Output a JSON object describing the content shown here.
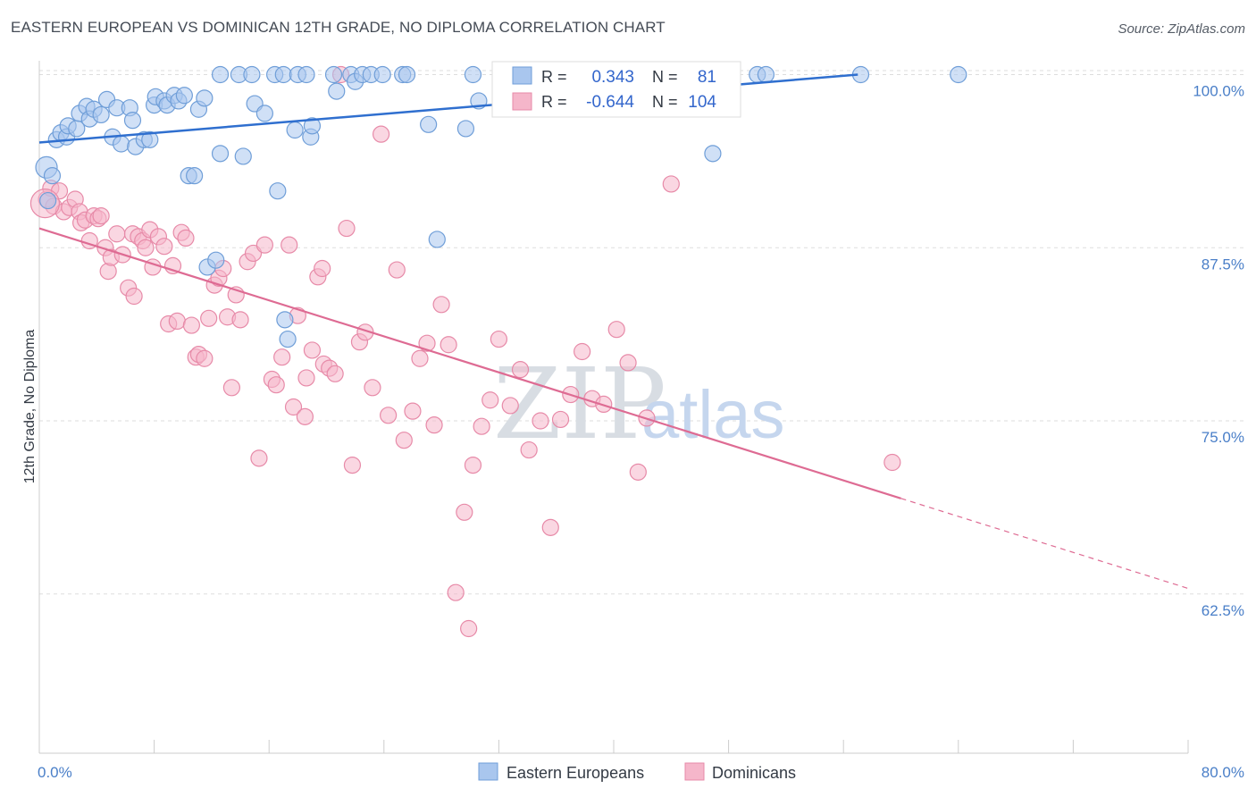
{
  "title": "EASTERN EUROPEAN VS DOMINICAN 12TH GRADE, NO DIPLOMA CORRELATION CHART",
  "source": "Source: ZipAtlas.com",
  "watermark": {
    "zip": "ZIP",
    "atlas": "atlas"
  },
  "colors": {
    "blue_fill": "#a9c6ee",
    "blue_stroke": "#6f9ed8",
    "blue_line": "#2f6fcf",
    "pink_fill": "#f5b6ca",
    "pink_stroke": "#e78aa8",
    "pink_line": "#de6b93",
    "tick_label": "#4a7fc8",
    "grid": "#dddddd"
  },
  "legend": {
    "rows": [
      {
        "r_label": "R =",
        "r_value": "0.343",
        "n_label": "N =",
        "n_value": "81"
      },
      {
        "r_label": "R =",
        "r_value": "-0.644",
        "n_label": "N =",
        "n_value": "104"
      }
    ]
  },
  "chart_data": {
    "type": "scatter",
    "title": "EASTERN EUROPEAN VS DOMINICAN 12TH GRADE, NO DIPLOMA CORRELATION CHART",
    "xlabel": "",
    "ylabel": "12th Grade, No Diploma",
    "xlim": [
      0,
      80
    ],
    "ylim": [
      51,
      101
    ],
    "x_tick_labels": [
      "0.0%",
      "80.0%"
    ],
    "y_ticks": [
      62.5,
      75.0,
      87.5,
      100.0
    ],
    "y_tick_labels": [
      "62.5%",
      "75.0%",
      "87.5%",
      "100.0%"
    ],
    "grid": true,
    "legend_position": "top-center",
    "series": [
      {
        "name": "Eastern Europeans",
        "color": "#a9c6ee",
        "trend": {
          "x": [
            0,
            57
          ],
          "y": [
            95.1,
            100.0
          ]
        },
        "points": [
          [
            0.5,
            93.3
          ],
          [
            0.6,
            90.9
          ],
          [
            0.9,
            92.7
          ],
          [
            1.2,
            95.3
          ],
          [
            1.5,
            95.8
          ],
          [
            1.9,
            95.5
          ],
          [
            2.0,
            96.3
          ],
          [
            2.6,
            96.1
          ],
          [
            2.8,
            97.2
          ],
          [
            3.3,
            97.7
          ],
          [
            3.5,
            96.8
          ],
          [
            3.8,
            97.5
          ],
          [
            4.3,
            97.1
          ],
          [
            4.7,
            98.2
          ],
          [
            5.1,
            95.5
          ],
          [
            5.4,
            97.6
          ],
          [
            5.7,
            95.0
          ],
          [
            6.3,
            97.6
          ],
          [
            6.5,
            96.7
          ],
          [
            6.7,
            94.8
          ],
          [
            7.3,
            95.3
          ],
          [
            7.7,
            95.3
          ],
          [
            8.0,
            97.8
          ],
          [
            8.1,
            98.4
          ],
          [
            8.7,
            98.1
          ],
          [
            8.9,
            97.8
          ],
          [
            9.4,
            98.5
          ],
          [
            9.7,
            98.1
          ],
          [
            10.1,
            98.5
          ],
          [
            10.4,
            92.7
          ],
          [
            10.8,
            92.7
          ],
          [
            11.1,
            97.5
          ],
          [
            11.5,
            98.3
          ],
          [
            11.7,
            86.1
          ],
          [
            12.3,
            86.6
          ],
          [
            12.6,
            94.3
          ],
          [
            12.6,
            100
          ],
          [
            13.9,
            100
          ],
          [
            14.2,
            94.1
          ],
          [
            14.8,
            100
          ],
          [
            15.0,
            97.9
          ],
          [
            15.7,
            97.2
          ],
          [
            16.4,
            100
          ],
          [
            16.6,
            91.6
          ],
          [
            17.0,
            100
          ],
          [
            17.1,
            82.3
          ],
          [
            17.3,
            80.9
          ],
          [
            17.8,
            96.0
          ],
          [
            18.0,
            100
          ],
          [
            18.6,
            100
          ],
          [
            18.9,
            95.5
          ],
          [
            19.0,
            96.3
          ],
          [
            20.5,
            100
          ],
          [
            20.7,
            98.8
          ],
          [
            21.7,
            100
          ],
          [
            22.0,
            99.5
          ],
          [
            22.5,
            100
          ],
          [
            23.1,
            100
          ],
          [
            23.9,
            100
          ],
          [
            25.3,
            100
          ],
          [
            25.6,
            100
          ],
          [
            27.1,
            96.4
          ],
          [
            27.7,
            88.1
          ],
          [
            29.7,
            96.1
          ],
          [
            30.2,
            100
          ],
          [
            30.6,
            98.1
          ],
          [
            32.5,
            100
          ],
          [
            35.5,
            100
          ],
          [
            37.1,
            100
          ],
          [
            39.9,
            100
          ],
          [
            41.0,
            100
          ],
          [
            42.7,
            100
          ],
          [
            43.2,
            100
          ],
          [
            44.5,
            99.7
          ],
          [
            45.6,
            100
          ],
          [
            46.4,
            100
          ],
          [
            46.9,
            94.3
          ],
          [
            50.0,
            100
          ],
          [
            50.6,
            100
          ],
          [
            57.2,
            100
          ],
          [
            64.0,
            100
          ]
        ]
      },
      {
        "name": "Dominicans",
        "color": "#f5b6ca",
        "trend": {
          "x": [
            0,
            60
          ],
          "y": [
            88.9,
            69.4
          ]
        },
        "trend_dashed": {
          "x": [
            60,
            80
          ],
          "y": [
            69.4,
            62.9
          ]
        },
        "points": [
          [
            0.5,
            91.0
          ],
          [
            0.8,
            91.8
          ],
          [
            1.0,
            90.5
          ],
          [
            1.4,
            91.6
          ],
          [
            1.7,
            90.1
          ],
          [
            2.1,
            90.4
          ],
          [
            2.5,
            91.0
          ],
          [
            2.8,
            90.1
          ],
          [
            2.9,
            89.3
          ],
          [
            3.2,
            89.5
          ],
          [
            3.5,
            88.0
          ],
          [
            3.8,
            89.8
          ],
          [
            4.1,
            89.6
          ],
          [
            4.3,
            89.8
          ],
          [
            4.6,
            87.5
          ],
          [
            4.8,
            85.8
          ],
          [
            5.0,
            86.8
          ],
          [
            5.4,
            88.5
          ],
          [
            5.8,
            87.0
          ],
          [
            6.2,
            84.6
          ],
          [
            6.5,
            88.5
          ],
          [
            6.6,
            84.0
          ],
          [
            6.9,
            88.3
          ],
          [
            7.2,
            88.0
          ],
          [
            7.4,
            87.5
          ],
          [
            7.7,
            88.8
          ],
          [
            7.9,
            86.1
          ],
          [
            8.3,
            88.3
          ],
          [
            8.7,
            87.6
          ],
          [
            9.0,
            82.0
          ],
          [
            9.3,
            86.2
          ],
          [
            9.6,
            82.2
          ],
          [
            9.9,
            88.6
          ],
          [
            10.2,
            88.2
          ],
          [
            10.6,
            81.9
          ],
          [
            10.9,
            79.6
          ],
          [
            11.1,
            79.8
          ],
          [
            11.5,
            79.5
          ],
          [
            11.8,
            82.4
          ],
          [
            12.2,
            84.8
          ],
          [
            12.5,
            85.3
          ],
          [
            12.8,
            86.0
          ],
          [
            13.1,
            82.5
          ],
          [
            13.4,
            77.4
          ],
          [
            13.7,
            84.1
          ],
          [
            14.0,
            82.3
          ],
          [
            14.5,
            86.5
          ],
          [
            14.9,
            87.1
          ],
          [
            15.3,
            72.3
          ],
          [
            15.7,
            87.7
          ],
          [
            16.2,
            78.0
          ],
          [
            16.5,
            77.6
          ],
          [
            16.9,
            79.6
          ],
          [
            17.4,
            87.7
          ],
          [
            17.7,
            76.0
          ],
          [
            18.0,
            82.6
          ],
          [
            18.5,
            75.3
          ],
          [
            19.0,
            80.1
          ],
          [
            19.4,
            85.4
          ],
          [
            19.8,
            79.1
          ],
          [
            20.2,
            78.8
          ],
          [
            20.6,
            78.4
          ],
          [
            21.0,
            100
          ],
          [
            21.4,
            88.9
          ],
          [
            21.8,
            71.8
          ],
          [
            22.3,
            80.7
          ],
          [
            22.7,
            81.4
          ],
          [
            23.2,
            77.4
          ],
          [
            23.8,
            95.7
          ],
          [
            24.3,
            75.4
          ],
          [
            24.9,
            85.9
          ],
          [
            25.4,
            73.6
          ],
          [
            26.0,
            75.7
          ],
          [
            26.5,
            79.5
          ],
          [
            27.0,
            80.6
          ],
          [
            27.5,
            74.7
          ],
          [
            28.0,
            83.4
          ],
          [
            28.5,
            80.5
          ],
          [
            29.0,
            62.6
          ],
          [
            29.6,
            68.4
          ],
          [
            30.2,
            71.8
          ],
          [
            30.8,
            74.6
          ],
          [
            31.4,
            76.5
          ],
          [
            32.0,
            80.9
          ],
          [
            32.8,
            76.1
          ],
          [
            33.5,
            78.7
          ],
          [
            34.1,
            72.9
          ],
          [
            34.9,
            75.0
          ],
          [
            35.6,
            67.3
          ],
          [
            36.3,
            75.1
          ],
          [
            37.0,
            76.9
          ],
          [
            37.8,
            80.0
          ],
          [
            38.5,
            76.6
          ],
          [
            39.3,
            76.2
          ],
          [
            40.2,
            81.6
          ],
          [
            41.0,
            79.2
          ],
          [
            41.7,
            71.3
          ],
          [
            42.3,
            75.2
          ],
          [
            43.2,
            100
          ],
          [
            44.0,
            92.1
          ],
          [
            59.4,
            72.0
          ],
          [
            29.9,
            60.0
          ],
          [
            18.6,
            78.1
          ],
          [
            19.7,
            86.0
          ]
        ]
      }
    ]
  },
  "bottom_legend": [
    {
      "name": "Eastern Europeans"
    },
    {
      "name": "Dominicans"
    }
  ]
}
